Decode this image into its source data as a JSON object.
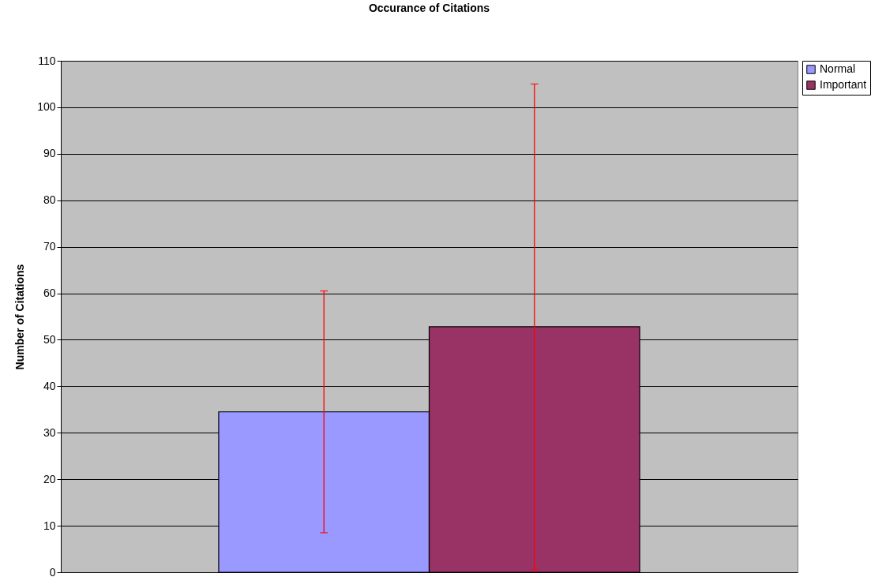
{
  "chart_data": {
    "type": "bar",
    "title": "Occurance of Citations",
    "ylabel": "Number of Citations",
    "categories": [
      null
    ],
    "series": [
      {
        "name": "Normal",
        "color": "#9999ff",
        "values": [
          34.5
        ],
        "errors": [
          [
            8.5,
            60.5
          ]
        ]
      },
      {
        "name": "Important",
        "color": "#993366",
        "values": [
          52.8
        ],
        "errors": [
          [
            0.5,
            105
          ]
        ]
      }
    ],
    "ylim": [
      0,
      110
    ],
    "yticks": [
      0,
      10,
      20,
      30,
      40,
      50,
      60,
      70,
      80,
      90,
      100,
      110
    ],
    "grid": "y",
    "legend": "right"
  }
}
